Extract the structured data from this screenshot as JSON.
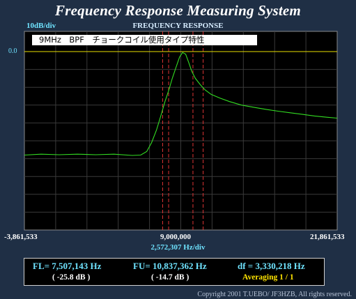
{
  "window": {
    "title": "Frequency Response Measuring System"
  },
  "plot": {
    "graph_title": "FREQUENCY RESPONSE",
    "y_scale_label": "10dB/div",
    "y_reference_label": "0.0",
    "note": "9MHz　BPF　チョークコイル使用タイプ特性",
    "x_tick_left": "-3,861,533",
    "x_tick_center": "9,000,000",
    "x_tick_right": "21,861,533",
    "x_div_label": "2,572,307  Hz/div",
    "colors": {
      "trace": "#33dd22",
      "reference": "#e8e000",
      "marker": "#dd3333",
      "grid": "#3a3a3a",
      "background": "#000000"
    }
  },
  "results": {
    "fl": "FL= 7,507,143  Hz",
    "fl_db": "( -25.8 dB )",
    "fu": "FU= 10,837,362  Hz",
    "fu_db": "( -14.7 dB )",
    "df": "df = 3,330,218  Hz",
    "averaging": "Averaging   1 / 1"
  },
  "footer": {
    "copyright": "Copyright 2001 T.UEBO/ JF3HZB, All rights reserved."
  },
  "chart_data": {
    "type": "line",
    "xlim": [
      -3861533,
      21861533
    ],
    "ylim": [
      -100,
      0
    ],
    "grid": true,
    "reference_line_db": 0,
    "markers_hz": [
      7507143,
      8000000,
      10000000,
      10837362
    ],
    "series": [
      {
        "x": [
          -3861533,
          -2500000,
          -1000000,
          500000,
          2000000,
          3500000,
          5000000,
          5700000,
          6200000,
          6600000,
          7000000,
          7400000,
          7700000,
          8000000,
          8300000,
          8600000,
          8900000,
          9150000,
          9400000,
          9650000,
          9900000,
          10200000,
          10600000,
          11000000,
          11500000,
          12200000,
          13000000,
          14000000,
          15000000,
          16000000,
          17000000,
          18000000,
          19000000,
          20000000,
          21000000,
          21861533
        ],
        "y": [
          -58,
          -57.5,
          -57.8,
          -57.5,
          -57.8,
          -57.5,
          -58.2,
          -58,
          -56,
          -51,
          -44,
          -35,
          -28,
          -22,
          -15,
          -9,
          -3,
          -0.5,
          -1.5,
          -6,
          -11,
          -15,
          -18.5,
          -21.5,
          -24,
          -26,
          -28,
          -30,
          -31.2,
          -32.4,
          -33.4,
          -34.3,
          -35.2,
          -36.1,
          -36.8,
          -37.3
        ]
      }
    ]
  }
}
